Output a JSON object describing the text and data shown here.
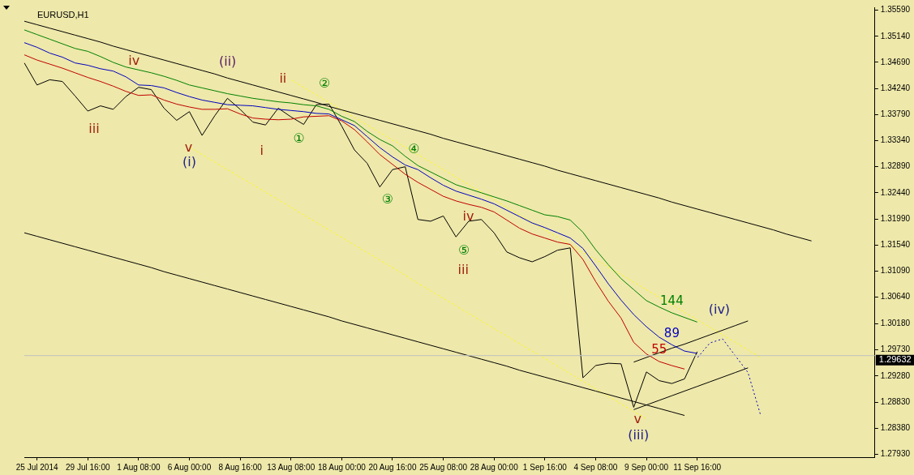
{
  "chart_data": {
    "type": "line",
    "title": "EURUSD,H1",
    "marker": "none",
    "legend": false,
    "grid": false,
    "categories": [
      null,
      "25 Jul 2014",
      null,
      null,
      null,
      "29 Jul 16:00",
      null,
      null,
      null,
      "1 Aug 08:00",
      null,
      null,
      null,
      "6 Aug 00:00",
      null,
      null,
      null,
      "8 Aug 16:00",
      null,
      null,
      null,
      "13 Aug 08:00",
      null,
      null,
      null,
      "18 Aug 00:00",
      null,
      null,
      null,
      "20 Aug 16:00",
      null,
      null,
      null,
      "25 Aug 08:00",
      null,
      null,
      null,
      "28 Aug 00:00",
      null,
      null,
      null,
      "1 Sep 16:00",
      null,
      null,
      null,
      "4 Sep 08:00",
      null,
      null,
      null,
      "9 Sep 00:00",
      null,
      null,
      null,
      "11 Sep 16:00",
      null,
      null,
      null,
      null,
      null,
      null,
      null,
      null,
      null,
      null,
      null,
      null,
      null,
      null
    ],
    "ylim": [
      1.2788,
      1.3564
    ],
    "yticks": [
      {
        "value": 1.3559,
        "label": "1.35590"
      },
      {
        "value": 1.3514,
        "label": "1.35140"
      },
      {
        "value": 1.3469,
        "label": "1.34690"
      },
      {
        "value": 1.3424,
        "label": "1.34240"
      },
      {
        "value": 1.3379,
        "label": "1.33790"
      },
      {
        "value": 1.3334,
        "label": "1.33340"
      },
      {
        "value": 1.3289,
        "label": "1.32890"
      },
      {
        "value": 1.3244,
        "label": "1.32440"
      },
      {
        "value": 1.3199,
        "label": "1.31990"
      },
      {
        "value": 1.3154,
        "label": "1.31540"
      },
      {
        "value": 1.3109,
        "label": "1.31090"
      },
      {
        "value": 1.3064,
        "label": "1.30640"
      },
      {
        "value": 1.3018,
        "label": "1.30180"
      },
      {
        "value": 1.2973,
        "label": "1.29730"
      },
      {
        "value": 1.2928,
        "label": "1.29280"
      },
      {
        "value": 1.2883,
        "label": "1.28830"
      },
      {
        "value": 1.2838,
        "label": "1.28380"
      },
      {
        "value": 1.2793,
        "label": "1.27930"
      }
    ],
    "ref_lines": [
      {
        "axis": "y",
        "value": 1.29632,
        "label": "1.29632",
        "color": "#c0c0c0"
      }
    ],
    "series": [
      {
        "name": "144",
        "color": "#008000",
        "values": [
          1.3525,
          1.3517,
          1.3509,
          1.3501,
          1.3493,
          1.3488,
          1.3479,
          1.3469,
          1.3461,
          1.3456,
          1.3451,
          1.3445,
          1.3438,
          1.343,
          1.3425,
          1.342,
          1.3415,
          1.3411,
          1.3407,
          1.3404,
          1.3401,
          1.3399,
          1.3396,
          1.3394,
          1.3388,
          1.3376,
          1.3367,
          1.335,
          1.3336,
          1.3325,
          1.3307,
          1.3291,
          1.328,
          1.3269,
          1.3258,
          1.3251,
          1.3244,
          1.3237,
          1.323,
          1.3222,
          1.3214,
          1.3206,
          1.3203,
          1.3197,
          1.3176,
          1.3146,
          1.312,
          1.3096,
          1.3077,
          1.3058,
          1.3047,
          1.3037,
          1.3029,
          1.3021,
          null,
          null,
          null,
          null,
          null,
          null,
          null,
          null,
          null,
          null,
          null,
          null,
          null,
          null
        ]
      },
      {
        "name": "89",
        "color": "#0000c0",
        "values": [
          1.3503,
          1.3495,
          1.3485,
          1.3478,
          1.3468,
          1.3464,
          1.3458,
          1.3454,
          1.3444,
          1.343,
          1.3429,
          1.3425,
          1.3417,
          1.341,
          1.3404,
          1.34,
          1.3396,
          1.3395,
          1.3394,
          1.3391,
          1.3388,
          1.3386,
          1.3384,
          1.3381,
          1.338,
          1.337,
          1.336,
          1.3341,
          1.3322,
          1.3306,
          1.3292,
          1.3284,
          1.327,
          1.3257,
          1.3247,
          1.324,
          1.3233,
          1.3225,
          1.3214,
          1.3203,
          1.3192,
          1.3184,
          1.3175,
          1.3166,
          1.3148,
          1.3118,
          1.3087,
          1.3059,
          1.3034,
          1.3013,
          1.2995,
          1.2982,
          1.2971,
          1.2967,
          null,
          null,
          null,
          null,
          null,
          null,
          null,
          null,
          null,
          null,
          null,
          null,
          null,
          null
        ]
      },
      {
        "name": "55",
        "color": "#c00000",
        "values": [
          1.3482,
          1.3473,
          1.3466,
          1.3459,
          1.3451,
          1.3443,
          1.3436,
          1.3428,
          1.3419,
          1.3412,
          1.3413,
          1.3404,
          1.3397,
          1.3392,
          1.3388,
          1.3388,
          1.3389,
          1.338,
          1.3373,
          1.3371,
          1.337,
          1.3371,
          1.3375,
          1.3376,
          1.3377,
          1.3368,
          1.3353,
          1.3332,
          1.331,
          1.3293,
          1.3276,
          1.3262,
          1.325,
          1.3238,
          1.323,
          1.3224,
          1.3219,
          1.3211,
          1.3197,
          1.3183,
          1.3173,
          1.3166,
          1.3159,
          1.3155,
          1.3129,
          1.3091,
          1.3057,
          1.3028,
          1.2986,
          1.2966,
          1.2953,
          1.2946,
          1.294,
          null,
          null,
          null,
          null,
          null,
          null,
          null,
          null,
          null,
          null,
          null,
          null,
          null,
          null,
          null
        ]
      },
      {
        "color": "#000000",
        "values": [
          1.3468,
          1.343,
          1.3439,
          1.3436,
          1.3411,
          1.3385,
          1.3394,
          1.3388,
          1.341,
          1.3426,
          1.3422,
          1.339,
          1.3369,
          1.3384,
          1.3343,
          1.3377,
          1.3407,
          1.3388,
          1.3366,
          1.3361,
          1.339,
          1.3375,
          1.3362,
          1.3396,
          1.3397,
          1.3359,
          1.3318,
          1.3295,
          1.3254,
          1.3284,
          1.3289,
          1.3198,
          1.3195,
          1.3204,
          1.3168,
          1.3195,
          1.3198,
          1.3175,
          1.3142,
          1.3132,
          1.3125,
          1.3134,
          1.3145,
          1.3149,
          1.2925,
          1.2946,
          1.295,
          1.2949,
          1.2874,
          1.2935,
          1.292,
          1.2915,
          1.2923,
          1.297,
          null,
          null,
          null,
          null,
          null,
          null,
          null,
          null,
          null,
          null,
          null,
          null,
          null,
          null
        ]
      },
      {
        "color": "#000000",
        "values": [
          1.354,
          1.3534,
          1.3528,
          1.3522,
          1.3516,
          1.351,
          1.3504,
          1.3497,
          1.3491,
          1.3485,
          1.3479,
          1.3473,
          1.3467,
          1.3461,
          1.3455,
          1.3449,
          1.3442,
          1.3436,
          1.343,
          1.3424,
          1.3418,
          1.3412,
          1.3406,
          1.34,
          1.3393,
          1.3387,
          1.3381,
          1.3375,
          1.3369,
          1.3363,
          1.3357,
          1.3351,
          1.3345,
          1.3338,
          1.3332,
          1.3326,
          1.332,
          1.3314,
          1.3308,
          1.3302,
          1.3296,
          1.329,
          1.3283,
          1.3277,
          1.3271,
          1.3265,
          1.3259,
          1.3253,
          1.3247,
          1.3241,
          1.3235,
          1.3228,
          1.3222,
          1.3216,
          1.321,
          1.3204,
          1.3198,
          1.3192,
          1.3186,
          1.318,
          1.3173,
          1.3167,
          1.3161,
          null,
          null,
          null,
          null,
          null
        ]
      },
      {
        "color": "#000000",
        "values": [
          1.3175,
          1.3169,
          1.3163,
          1.3157,
          1.3151,
          1.3145,
          1.3139,
          1.3133,
          1.3127,
          1.3121,
          1.3115,
          1.3108,
          1.3102,
          1.3096,
          1.309,
          1.3084,
          1.3078,
          1.3072,
          1.3066,
          1.306,
          1.3054,
          1.3048,
          1.3042,
          1.3036,
          1.303,
          1.3023,
          1.3017,
          1.3011,
          1.3005,
          1.2999,
          1.2993,
          1.2987,
          1.2981,
          1.2975,
          1.2969,
          1.2963,
          1.2957,
          1.2951,
          1.2945,
          1.2938,
          1.2932,
          1.2926,
          1.292,
          1.2914,
          1.2908,
          1.2902,
          1.2896,
          1.289,
          1.2884,
          1.2878,
          1.2872,
          1.2866,
          1.286,
          null,
          null,
          null,
          null,
          null,
          null,
          null,
          null,
          null,
          null,
          null,
          null,
          null,
          null,
          null
        ]
      },
      {
        "color": "#000000",
        "values": [
          null,
          null,
          null,
          null,
          null,
          null,
          null,
          null,
          null,
          null,
          null,
          null,
          null,
          null,
          null,
          null,
          null,
          null,
          null,
          null,
          null,
          null,
          null,
          null,
          null,
          null,
          null,
          null,
          null,
          null,
          null,
          null,
          null,
          null,
          null,
          null,
          null,
          null,
          null,
          null,
          null,
          null,
          null,
          null,
          null,
          null,
          null,
          null,
          1.2952,
          1.296,
          1.2968,
          1.2976,
          1.2983,
          1.2991,
          1.2999,
          1.3007,
          1.3015,
          1.3023,
          null,
          null,
          null,
          null,
          null,
          null,
          null,
          null,
          null,
          null
        ]
      },
      {
        "color": "#000000",
        "values": [
          null,
          null,
          null,
          null,
          null,
          null,
          null,
          null,
          null,
          null,
          null,
          null,
          null,
          null,
          null,
          null,
          null,
          null,
          null,
          null,
          null,
          null,
          null,
          null,
          null,
          null,
          null,
          null,
          null,
          null,
          null,
          null,
          null,
          null,
          null,
          null,
          null,
          null,
          null,
          null,
          null,
          null,
          null,
          null,
          null,
          null,
          null,
          null,
          1.287,
          1.2878,
          1.2886,
          1.2894,
          1.2902,
          1.291,
          1.2918,
          1.2926,
          1.2934,
          1.2942,
          null,
          null,
          null,
          null,
          null,
          null,
          null,
          null,
          null,
          null
        ]
      },
      {
        "color": "#ffff00",
        "line_style": "dotted",
        "values": [
          null,
          null,
          null,
          null,
          null,
          null,
          null,
          null,
          null,
          null,
          null,
          null,
          null,
          null,
          null,
          null,
          null,
          null,
          null,
          null,
          null,
          1.3439,
          1.3426,
          1.3413,
          1.34,
          1.3387,
          1.3374,
          1.3361,
          1.3348,
          1.3335,
          1.3323,
          1.331,
          1.3297,
          1.3284,
          1.3271,
          1.3258,
          1.3245,
          1.3232,
          1.3219,
          1.3206,
          1.3193,
          1.318,
          1.3167,
          1.3154,
          1.3141,
          1.3129,
          1.3116,
          1.3103,
          1.309,
          1.3077,
          1.3064,
          1.3051,
          1.3038,
          1.3025,
          1.3012,
          1.2999,
          1.2986,
          1.2973,
          1.296,
          null,
          null,
          null,
          null,
          null,
          null,
          null,
          null,
          null
        ]
      },
      {
        "color": "#ffff00",
        "line_style": "dotted",
        "values": [
          null,
          null,
          null,
          null,
          null,
          null,
          null,
          null,
          null,
          null,
          null,
          null,
          null,
          1.3323,
          1.331,
          1.3297,
          1.3284,
          1.3271,
          1.3258,
          1.3245,
          1.3232,
          1.3219,
          1.3206,
          1.3193,
          1.318,
          1.3167,
          1.3154,
          1.3141,
          1.3128,
          1.3115,
          1.3102,
          1.3088,
          1.3075,
          1.3062,
          1.3049,
          1.3036,
          1.3023,
          1.301,
          1.2997,
          1.2984,
          1.2971,
          1.2958,
          1.2945,
          1.2932,
          1.2919,
          1.2906,
          1.2893,
          1.288,
          1.2867,
          1.2854,
          null,
          null,
          null,
          null,
          null,
          null,
          null,
          null,
          null,
          null,
          null,
          null,
          null,
          null,
          null,
          null,
          null,
          null
        ]
      },
      {
        "color": "#0000c0",
        "line_style": "dotted",
        "values": [
          null,
          null,
          null,
          null,
          null,
          null,
          null,
          null,
          null,
          null,
          null,
          null,
          null,
          null,
          null,
          null,
          null,
          null,
          null,
          null,
          null,
          null,
          null,
          null,
          null,
          null,
          null,
          null,
          null,
          null,
          null,
          null,
          null,
          null,
          null,
          null,
          null,
          null,
          null,
          null,
          null,
          null,
          null,
          null,
          null,
          null,
          null,
          null,
          null,
          null,
          null,
          null,
          null,
          1.2959,
          1.2985,
          1.2992,
          1.2963,
          1.2934,
          1.286,
          null,
          null,
          null,
          null,
          null,
          null,
          null,
          null,
          null
        ]
      }
    ],
    "annotations": [
      "iii",
      "iv",
      "v",
      "(i)",
      "(ii)",
      "ii",
      "i",
      "①",
      "②",
      "③",
      "④",
      "⑤",
      "iii",
      "iv",
      "v",
      "(iii)",
      "(iv)"
    ]
  }
}
